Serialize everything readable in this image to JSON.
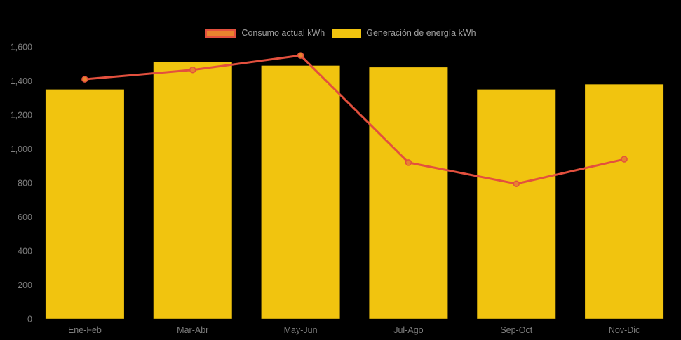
{
  "chart_data": {
    "type": "bar+line",
    "title": "",
    "categories": [
      "Ene-Feb",
      "Mar-Abr",
      "May-Jun",
      "Jul-Ago",
      "Sep-Oct",
      "Nov-Dic"
    ],
    "series": [
      {
        "name": "Consumo actual kWh",
        "type": "line",
        "values": [
          1410,
          1465,
          1550,
          920,
          795,
          940
        ],
        "color": "#E3503E",
        "marker_fill": "#E8832E"
      },
      {
        "name": "Generación de energía kWh",
        "type": "bar",
        "values": [
          1350,
          1510,
          1490,
          1480,
          1350,
          1380
        ],
        "color": "#F1C40F"
      }
    ],
    "ylim": [
      0,
      1600
    ],
    "ytick_step": 200,
    "ytick_labels": [
      "0",
      "200",
      "400",
      "600",
      "800",
      "1,000",
      "1,200",
      "1,400",
      "1,600"
    ],
    "xlabel": "",
    "ylabel": "",
    "grid": false,
    "legend_position": "top-center",
    "background_color": "#000000",
    "axis_label_color": "#7E7E7E",
    "legend_text_color": "#9E9E9E"
  }
}
